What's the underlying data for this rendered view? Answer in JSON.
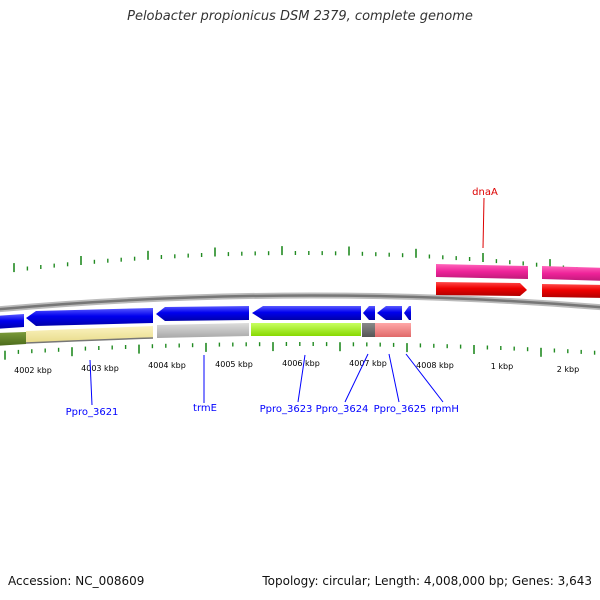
{
  "title": "Pelobacter propionicus DSM 2379, complete genome",
  "genes": [
    {
      "label": "Ppro_3621",
      "color": "#0000ff"
    },
    {
      "label": "trmE",
      "color": "#0000ff"
    },
    {
      "label": "Ppro_3623",
      "color": "#0000ff"
    },
    {
      "label": "Ppro_3624",
      "color": "#0000ff"
    },
    {
      "label": "Ppro_3625",
      "color": "#0000ff"
    },
    {
      "label": "rpmH",
      "color": "#0000ff"
    },
    {
      "label": "dnaA",
      "color": "#dd0000"
    }
  ],
  "scale_labels": [
    "4002 kbp",
    "4003 kbp",
    "4004 kbp",
    "4005 kbp",
    "4006 kbp",
    "4007 kbp",
    "4008 kbp",
    "1 kbp",
    "2 kbp"
  ],
  "colors": {
    "forward_gene": "#0000ee",
    "reverse_gene": "#ee0000",
    "dnaA_category": "#ee3399",
    "backbone": "#888888",
    "ticks": "#228b22"
  },
  "footer": {
    "accession": "Accession: NC_008609",
    "summary": "Topology: circular; Length: 4,008,000 bp; Genes: 3,643"
  }
}
